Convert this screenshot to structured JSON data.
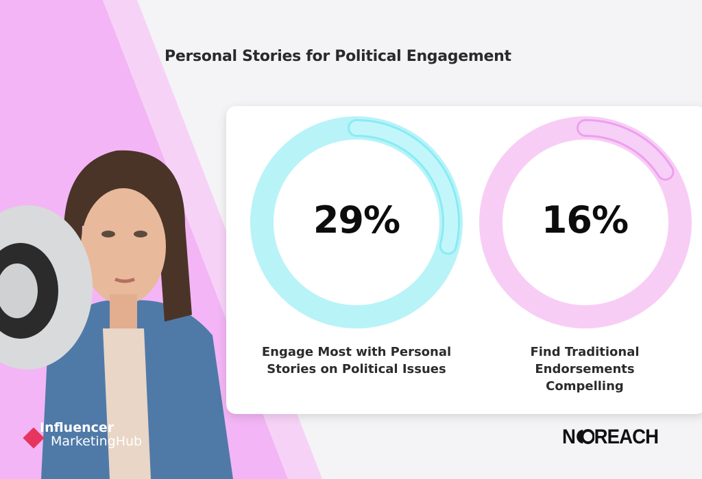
{
  "title": "Personal Stories for Political Engagement",
  "chart_data": [
    {
      "type": "pie",
      "style": "donut-gauge",
      "value": 29,
      "max": 100,
      "label": "29%",
      "caption": "Engage Most with Personal Stories on Political Issues",
      "color": "#5fe6f2",
      "track_color": "#b8f3f8"
    },
    {
      "type": "pie",
      "style": "donut-gauge",
      "value": 16,
      "max": 100,
      "label": "16%",
      "caption": "Find Traditional Endorsements Compelling",
      "color": "#e27ce8",
      "track_color": "#f8cdf5"
    }
  ],
  "logos": {
    "left": {
      "line1": "Influencer",
      "line2": "MarketingHub"
    },
    "right": "NEOREACH"
  },
  "colors": {
    "pink_band": "#f0a8f2",
    "accent_red": "#e6355e"
  }
}
